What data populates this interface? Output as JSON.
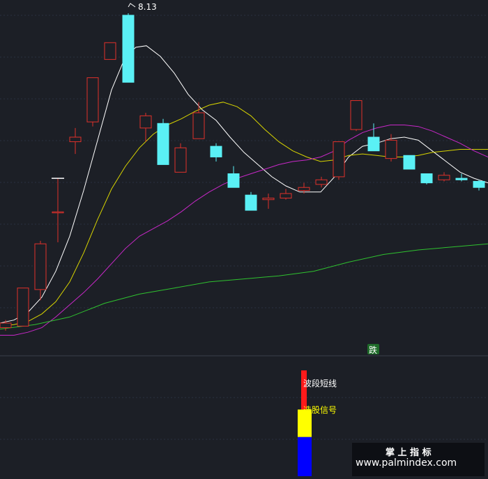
{
  "chart_data": {
    "type": "candlestick",
    "main_panel": {
      "ylim": [
        -14.3,
        9.0
      ],
      "grid": true,
      "peak_label": "8.13",
      "candles": [
        {
          "x": 8,
          "open": -12.5,
          "close": -12.2,
          "high": -12.0,
          "low": -12.7,
          "dir": "up"
        },
        {
          "x": 33,
          "open": -12.4,
          "close": -9.9,
          "high": -9.9,
          "low": -12.4,
          "dir": "up"
        },
        {
          "x": 58,
          "open": -10.0,
          "close": -7.0,
          "high": -6.8,
          "low": -10.7,
          "dir": "up"
        },
        {
          "x": 83,
          "open": -4.9,
          "close": -4.9,
          "high": -2.7,
          "low": -6.9,
          "dir": "up"
        },
        {
          "x": 108,
          "open": -0.3,
          "close": 0.0,
          "high": 0.6,
          "low": -1.1,
          "dir": "up"
        },
        {
          "x": 133,
          "open": 1.0,
          "close": 3.9,
          "high": 3.9,
          "low": 0.7,
          "dir": "up"
        },
        {
          "x": 158,
          "open": 5.1,
          "close": 6.2,
          "high": 6.2,
          "low": 5.1,
          "dir": "up"
        },
        {
          "x": 184,
          "open": 8.0,
          "close": 3.6,
          "high": 8.13,
          "low": 3.6,
          "dir": "down"
        },
        {
          "x": 209,
          "open": 0.6,
          "close": 1.4,
          "high": 1.6,
          "low": -0.3,
          "dir": "up"
        },
        {
          "x": 234,
          "open": 0.9,
          "close": -1.8,
          "high": 1.2,
          "low": -1.8,
          "dir": "down"
        },
        {
          "x": 259,
          "open": -2.3,
          "close": -0.7,
          "high": -0.4,
          "low": -2.3,
          "dir": "up"
        },
        {
          "x": 285,
          "open": -0.1,
          "close": 1.6,
          "high": 2.3,
          "low": -0.1,
          "dir": "up"
        },
        {
          "x": 310,
          "open": -0.6,
          "close": -1.3,
          "high": -0.4,
          "low": -1.6,
          "dir": "down"
        },
        {
          "x": 335,
          "open": -2.4,
          "close": -3.3,
          "high": -1.9,
          "low": -3.3,
          "dir": "down"
        },
        {
          "x": 360,
          "open": -3.8,
          "close": -4.8,
          "high": -3.6,
          "low": -4.8,
          "dir": "down"
        },
        {
          "x": 385,
          "open": -4.1,
          "close": -4.0,
          "high": -3.7,
          "low": -4.7,
          "dir": "up"
        },
        {
          "x": 410,
          "open": -4.0,
          "close": -3.7,
          "high": -3.4,
          "low": -4.1,
          "dir": "up"
        },
        {
          "x": 436,
          "open": -3.5,
          "close": -3.3,
          "high": -3.0,
          "low": -3.7,
          "dir": "up"
        },
        {
          "x": 461,
          "open": -3.1,
          "close": -2.8,
          "high": -2.6,
          "low": -3.3,
          "dir": "up"
        },
        {
          "x": 486,
          "open": -2.6,
          "close": -0.3,
          "high": -0.3,
          "low": -2.8,
          "dir": "up"
        },
        {
          "x": 511,
          "open": 0.5,
          "close": 2.4,
          "high": 2.4,
          "low": 0.4,
          "dir": "up"
        },
        {
          "x": 536,
          "open": 0.0,
          "close": -0.9,
          "high": 0.9,
          "low": -0.9,
          "dir": "down"
        },
        {
          "x": 561,
          "open": -1.4,
          "close": -0.2,
          "high": 0.2,
          "low": -1.6,
          "dir": "up"
        },
        {
          "x": 587,
          "open": -1.2,
          "close": -2.1,
          "high": -1.2,
          "low": -2.1,
          "dir": "down"
        },
        {
          "x": 612,
          "open": -2.4,
          "close": -3.0,
          "high": -2.4,
          "low": -3.1,
          "dir": "down"
        },
        {
          "x": 637,
          "open": -2.8,
          "close": -2.5,
          "high": -2.3,
          "low": -2.9,
          "dir": "up"
        },
        {
          "x": 662,
          "open": -2.7,
          "close": -2.8,
          "high": -2.4,
          "low": -2.9,
          "dir": "down"
        },
        {
          "x": 687,
          "open": -2.9,
          "close": -3.3,
          "high": -2.8,
          "low": -3.5,
          "dir": "down"
        }
      ],
      "lines": [
        {
          "color": "#ffffff",
          "points": [
            [
              0,
              -12.2
            ],
            [
              20,
              -12.0
            ],
            [
              40,
              -11.5
            ],
            [
              60,
              -10.5
            ],
            [
              80,
              -8.8
            ],
            [
              100,
              -6.5
            ],
            [
              120,
              -3.5
            ],
            [
              140,
              -0.2
            ],
            [
              160,
              3.1
            ],
            [
              180,
              5.3
            ],
            [
              195,
              5.9
            ],
            [
              210,
              6.0
            ],
            [
              230,
              5.3
            ],
            [
              250,
              4.2
            ],
            [
              270,
              2.8
            ],
            [
              290,
              1.8
            ],
            [
              310,
              1.1
            ],
            [
              330,
              0.0
            ],
            [
              350,
              -1.0
            ],
            [
              370,
              -1.8
            ],
            [
              390,
              -2.6
            ],
            [
              410,
              -3.2
            ],
            [
              430,
              -3.6
            ],
            [
              460,
              -3.6
            ],
            [
              480,
              -2.6
            ],
            [
              500,
              -1.3
            ],
            [
              520,
              -0.6
            ],
            [
              540,
              -0.4
            ],
            [
              560,
              -0.1
            ],
            [
              580,
              0.0
            ],
            [
              600,
              -0.2
            ],
            [
              620,
              -0.9
            ],
            [
              640,
              -1.6
            ],
            [
              660,
              -2.3
            ],
            [
              680,
              -2.7
            ],
            [
              700,
              -3.0
            ]
          ]
        },
        {
          "color": "#d8d400",
          "points": [
            [
              0,
              -12.4
            ],
            [
              20,
              -12.3
            ],
            [
              40,
              -12.1
            ],
            [
              60,
              -11.6
            ],
            [
              80,
              -10.8
            ],
            [
              100,
              -9.5
            ],
            [
              120,
              -7.6
            ],
            [
              140,
              -5.4
            ],
            [
              160,
              -3.4
            ],
            [
              180,
              -1.9
            ],
            [
              200,
              -0.7
            ],
            [
              220,
              0.2
            ],
            [
              240,
              0.8
            ],
            [
              260,
              1.2
            ],
            [
              280,
              1.7
            ],
            [
              300,
              2.1
            ],
            [
              320,
              2.3
            ],
            [
              340,
              2.0
            ],
            [
              360,
              1.4
            ],
            [
              380,
              0.5
            ],
            [
              400,
              -0.3
            ],
            [
              420,
              -0.9
            ],
            [
              440,
              -1.3
            ],
            [
              460,
              -1.6
            ],
            [
              480,
              -1.5
            ],
            [
              500,
              -1.2
            ],
            [
              520,
              -1.1
            ],
            [
              540,
              -1.2
            ],
            [
              560,
              -1.3
            ],
            [
              580,
              -1.3
            ],
            [
              600,
              -1.2
            ],
            [
              620,
              -1.0
            ],
            [
              640,
              -0.9
            ],
            [
              660,
              -0.8
            ],
            [
              680,
              -0.8
            ],
            [
              700,
              -0.8
            ]
          ]
        },
        {
          "color": "#c828c8",
          "points": [
            [
              0,
              -13.0
            ],
            [
              20,
              -13.0
            ],
            [
              40,
              -12.8
            ],
            [
              60,
              -12.5
            ],
            [
              80,
              -11.8
            ],
            [
              100,
              -11.0
            ],
            [
              120,
              -10.2
            ],
            [
              140,
              -9.3
            ],
            [
              160,
              -8.3
            ],
            [
              180,
              -7.3
            ],
            [
              200,
              -6.5
            ],
            [
              220,
              -6.0
            ],
            [
              240,
              -5.5
            ],
            [
              260,
              -4.9
            ],
            [
              280,
              -4.2
            ],
            [
              300,
              -3.6
            ],
            [
              320,
              -3.1
            ],
            [
              340,
              -2.7
            ],
            [
              360,
              -2.4
            ],
            [
              380,
              -2.1
            ],
            [
              400,
              -1.8
            ],
            [
              420,
              -1.6
            ],
            [
              440,
              -1.5
            ],
            [
              460,
              -1.3
            ],
            [
              480,
              -0.9
            ],
            [
              500,
              -0.2
            ],
            [
              520,
              0.3
            ],
            [
              540,
              0.6
            ],
            [
              560,
              0.8
            ],
            [
              580,
              0.8
            ],
            [
              600,
              0.7
            ],
            [
              620,
              0.4
            ],
            [
              640,
              0.0
            ],
            [
              660,
              -0.4
            ],
            [
              680,
              -0.9
            ],
            [
              700,
              -1.3
            ]
          ]
        },
        {
          "color": "#2fc22f",
          "points": [
            [
              0,
              -12.6
            ],
            [
              50,
              -12.3
            ],
            [
              100,
              -11.8
            ],
            [
              150,
              -10.9
            ],
            [
              200,
              -10.3
            ],
            [
              250,
              -9.9
            ],
            [
              300,
              -9.5
            ],
            [
              350,
              -9.3
            ],
            [
              400,
              -9.1
            ],
            [
              450,
              -8.8
            ],
            [
              500,
              -8.2
            ],
            [
              550,
              -7.7
            ],
            [
              600,
              -7.4
            ],
            [
              650,
              -7.2
            ],
            [
              700,
              -7.0
            ]
          ]
        }
      ]
    },
    "signal_panel": {
      "bars": [
        {
          "color": "#ff1a1a",
          "from": 0.0,
          "to": 0.37,
          "label": "波段短线",
          "label_color": "#ffffff"
        },
        {
          "color": "#ffff00",
          "from": 0.37,
          "to": 0.63,
          "label": "选股信号",
          "label_color": "#ffff00"
        },
        {
          "color": "#0000ff",
          "from": 0.63,
          "to": 1.0,
          "label": "",
          "label_color": ""
        }
      ]
    },
    "tag": "跌"
  },
  "watermark": {
    "line1": "掌 上 指 标",
    "line2": "www.palmindex.com"
  },
  "colors": {
    "up": "#e0312b",
    "down": "#5af0f5",
    "background": "#1c1f26"
  }
}
